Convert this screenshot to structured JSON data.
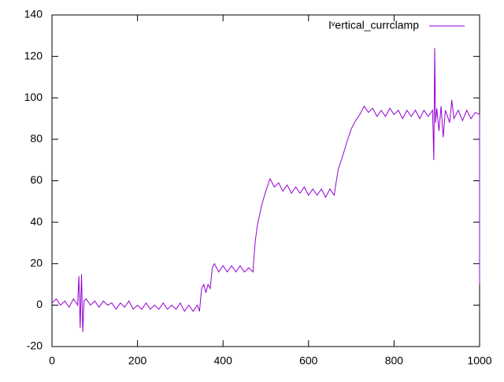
{
  "chart_data": {
    "type": "line",
    "x": [
      0,
      10,
      20,
      30,
      40,
      50,
      60,
      63,
      66,
      69,
      72,
      75,
      80,
      90,
      100,
      110,
      120,
      130,
      140,
      150,
      160,
      170,
      180,
      190,
      200,
      210,
      220,
      230,
      240,
      250,
      260,
      270,
      280,
      290,
      300,
      310,
      320,
      330,
      340,
      345,
      350,
      355,
      360,
      365,
      370,
      375,
      380,
      390,
      400,
      410,
      420,
      430,
      440,
      450,
      460,
      470,
      475,
      480,
      490,
      500,
      505,
      510,
      520,
      530,
      540,
      550,
      560,
      570,
      580,
      590,
      600,
      610,
      620,
      630,
      640,
      650,
      660,
      665,
      670,
      680,
      690,
      700,
      710,
      720,
      730,
      740,
      750,
      760,
      770,
      780,
      790,
      800,
      810,
      820,
      830,
      840,
      850,
      860,
      870,
      880,
      890,
      893,
      895,
      897,
      900,
      905,
      910,
      915,
      920,
      930,
      935,
      940,
      950,
      960,
      970,
      980,
      990,
      1000,
      1000
    ],
    "series": [
      {
        "name": "Iᵛertical_currclamp",
        "color": "#9400d3",
        "values": [
          1,
          3,
          0,
          2,
          -1,
          3,
          0,
          14,
          -11,
          15,
          -13,
          2,
          3,
          0,
          2,
          -1,
          2,
          0,
          1,
          -2,
          1,
          -1,
          2,
          -2,
          0,
          -2,
          1,
          -2,
          0,
          -2,
          1,
          -2,
          0,
          -2,
          1,
          -3,
          0,
          -3,
          0,
          -3,
          8,
          10,
          6,
          10,
          8,
          18,
          20,
          16,
          19,
          16,
          19,
          16,
          19,
          16,
          18,
          16,
          30,
          38,
          48,
          55,
          58,
          61,
          57,
          59,
          55,
          58,
          54,
          57,
          54,
          57,
          53,
          56,
          53,
          56,
          52,
          56,
          53,
          60,
          66,
          72,
          79,
          85,
          89,
          92,
          96,
          93,
          95,
          91,
          94,
          91,
          95,
          92,
          94,
          90,
          94,
          91,
          94,
          90,
          94,
          91,
          94,
          70,
          124,
          88,
          95,
          84,
          96,
          81,
          94,
          88,
          99,
          90,
          94,
          89,
          94,
          90,
          93,
          92,
          10
        ]
      }
    ],
    "xlim": [
      0,
      1000
    ],
    "ylim": [
      -20,
      140
    ],
    "xticks": [
      0,
      200,
      400,
      600,
      800,
      1000
    ],
    "yticks": [
      -20,
      0,
      20,
      40,
      60,
      80,
      100,
      120,
      140
    ],
    "legend": "top-right"
  }
}
